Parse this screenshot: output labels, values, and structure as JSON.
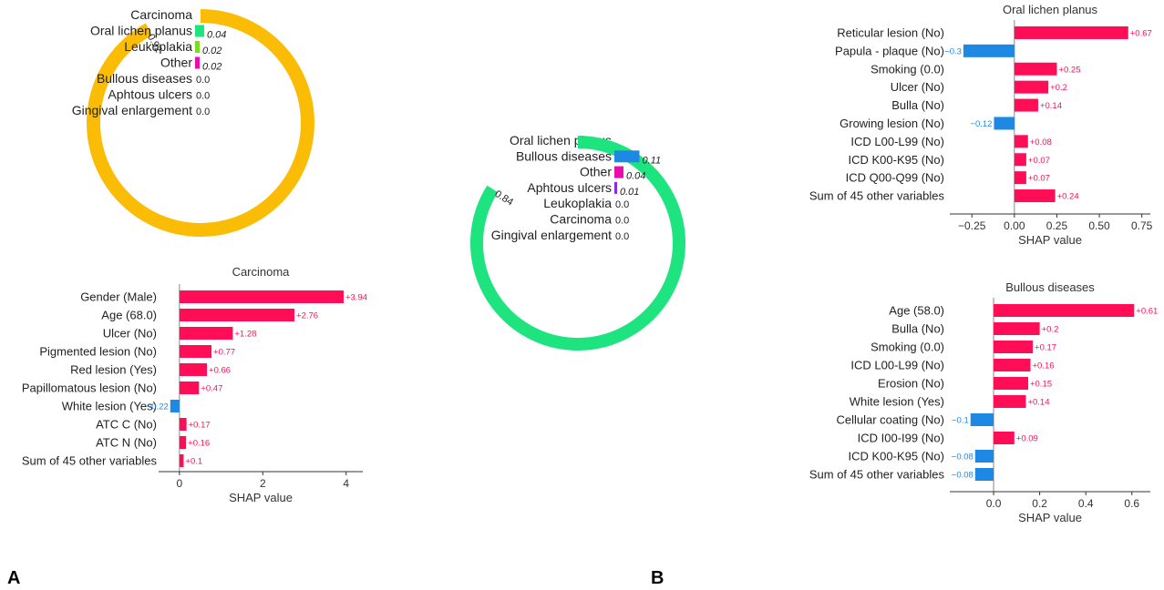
{
  "panels": {
    "a": "A",
    "b": "B"
  },
  "colors": {
    "carcinoma": "#fbbc05",
    "oral_lichen_planus": "#1de47f",
    "bullous_diseases": "#1e88e5",
    "other": "#ec0cae",
    "leukoplakia": "#7bdb1c",
    "aphtous_ulcers": "#8a2be2",
    "positive": "#ff0d57",
    "negative": "#1e88e5",
    "value_pos": "#ff0d57",
    "value_neg": "#1e88e5"
  },
  "chart_data": [
    {
      "type": "pie",
      "id": "ringA",
      "categories": [
        "Carcinoma",
        "Oral lichen planus",
        "Leukoplakia",
        "Other",
        "Bullous diseases",
        "Aphtous ulcers",
        "Gingival enlargement"
      ],
      "values": [
        0.92,
        0.04,
        0.02,
        0.02,
        0.0,
        0.0,
        0.0
      ],
      "value_labels": [
        "0.92",
        "0.04",
        "0.02",
        "0.02",
        "0.0",
        "0.0",
        "0.0"
      ]
    },
    {
      "type": "pie",
      "id": "ringB",
      "categories": [
        "Oral lichen planus",
        "Bullous diseases",
        "Other",
        "Aphtous ulcers",
        "Leukoplakia",
        "Carcinoma",
        "Gingival enlargement"
      ],
      "values": [
        0.84,
        0.11,
        0.04,
        0.01,
        0.0,
        0.0,
        0.0
      ],
      "value_labels": [
        "0.84",
        "0.11",
        "0.04",
        "0.01",
        "0.0",
        "0.0",
        "0.0"
      ]
    },
    {
      "type": "bar",
      "id": "barA",
      "title": "Carcinoma",
      "xlabel": "SHAP value",
      "categories": [
        "Gender (Male)",
        "Age (68.0)",
        "Ulcer (No)",
        "Pigmented lesion (No)",
        "Red lesion (Yes)",
        "Papillomatous lesion (No)",
        "White lesion (Yes)",
        "ATC C (No)",
        "ATC N (No)",
        "Sum of 45 other variables"
      ],
      "values": [
        3.94,
        2.76,
        1.28,
        0.77,
        0.66,
        0.47,
        -0.22,
        0.17,
        0.16,
        0.1
      ],
      "value_labels": [
        "+3.94",
        "+2.76",
        "+1.28",
        "+0.77",
        "+0.66",
        "+0.47",
        "−0.22",
        "+0.17",
        "+0.16",
        "+0.1"
      ],
      "xlim": [
        -0.5,
        4.4
      ],
      "xticks": [
        0,
        2,
        4
      ],
      "xtick_labels": [
        "0",
        "2",
        "4"
      ]
    },
    {
      "type": "bar",
      "id": "barB1",
      "title": "Oral lichen planus",
      "xlabel": "SHAP value",
      "categories": [
        "Reticular lesion (No)",
        "Papula - plaque (No)",
        "Smoking (0.0)",
        "Ulcer (No)",
        "Bulla (No)",
        "Growing lesion (No)",
        "ICD L00-L99 (No)",
        "ICD K00-K95 (No)",
        "ICD Q00-Q99 (No)",
        "Sum of 45 other variables"
      ],
      "values": [
        0.67,
        -0.3,
        0.25,
        0.2,
        0.14,
        -0.12,
        0.08,
        0.07,
        0.07,
        0.24
      ],
      "value_labels": [
        "+0.67",
        "−0.3",
        "+0.25",
        "+0.2",
        "+0.14",
        "−0.12",
        "+0.08",
        "+0.07",
        "+0.07",
        "+0.24"
      ],
      "xlim": [
        -0.38,
        0.8
      ],
      "xticks": [
        -0.25,
        0,
        0.25,
        0.5,
        0.75
      ],
      "xtick_labels": [
        "−0.25",
        "0.00",
        "0.25",
        "0.50",
        "0.75"
      ]
    },
    {
      "type": "bar",
      "id": "barB2",
      "title": "Bullous diseases",
      "xlabel": "SHAP value",
      "categories": [
        "Age (58.0)",
        "Bulla (No)",
        "Smoking (0.0)",
        "ICD L00-L99 (No)",
        "Erosion (No)",
        "White lesion (Yes)",
        "Cellular coating (No)",
        "ICD I00-I99 (No)",
        "ICD K00-K95 (No)",
        "Sum of 45 other variables"
      ],
      "values": [
        0.61,
        0.2,
        0.17,
        0.16,
        0.15,
        0.14,
        -0.1,
        0.09,
        -0.08,
        -0.08
      ],
      "value_labels": [
        "+0.61",
        "+0.2",
        "+0.17",
        "+0.16",
        "+0.15",
        "+0.14",
        "−0.1",
        "+0.09",
        "−0.08",
        "−0.08"
      ],
      "xlim": [
        -0.19,
        0.68
      ],
      "xticks": [
        0,
        0.2,
        0.4,
        0.6
      ],
      "xtick_labels": [
        "0.0",
        "0.2",
        "0.4",
        "0.6"
      ]
    }
  ]
}
